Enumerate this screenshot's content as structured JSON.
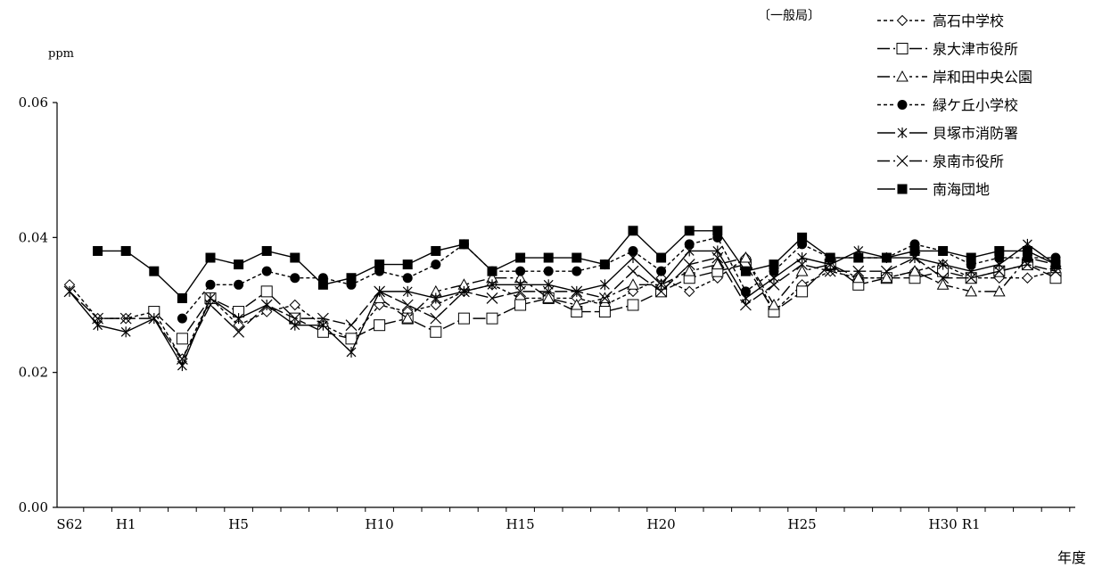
{
  "chart_data": {
    "type": "line",
    "title": "",
    "network_label": "〔一般局〕",
    "ylabel": "ppm",
    "xlabel": "年度",
    "ylim": [
      0,
      0.06
    ],
    "yticks": [
      "0.00",
      "0.02",
      "0.04",
      "0.06"
    ],
    "xlim": [
      0,
      35
    ],
    "xtick_labels": [
      {
        "i": 0,
        "label": "S62"
      },
      {
        "i": 2,
        "label": "H1"
      },
      {
        "i": 6,
        "label": "H5"
      },
      {
        "i": 11,
        "label": "H10"
      },
      {
        "i": 16,
        "label": "H15"
      },
      {
        "i": 21,
        "label": "H20"
      },
      {
        "i": 26,
        "label": "H25"
      },
      {
        "i": 31,
        "label": "H30"
      },
      {
        "i": 32,
        "label": "R1"
      }
    ],
    "x": [
      0,
      1,
      2,
      3,
      4,
      5,
      6,
      7,
      8,
      9,
      10,
      11,
      12,
      13,
      14,
      15,
      16,
      17,
      18,
      19,
      20,
      21,
      22,
      23,
      24,
      25,
      26,
      27,
      28,
      29,
      30,
      31,
      32,
      33,
      34,
      35
    ],
    "grid": false,
    "legend_position": "top-right",
    "series": [
      {
        "name": "高石中学校",
        "marker": "diamond-open",
        "dash": "4,3",
        "values": [
          0.033,
          0.028,
          0.028,
          0.029,
          0.022,
          0.031,
          0.027,
          0.029,
          0.03,
          0.027,
          0.025,
          0.03,
          0.029,
          0.03,
          0.032,
          0.033,
          0.031,
          0.031,
          0.031,
          0.03,
          0.032,
          0.034,
          0.032,
          0.034,
          0.037,
          0.029,
          0.033,
          0.035,
          0.034,
          0.034,
          0.035,
          0.036,
          0.034,
          0.034,
          0.034,
          0.035
        ]
      },
      {
        "name": "泉大津市役所",
        "marker": "square-open",
        "dash": "14,4",
        "values": [
          null,
          null,
          null,
          0.029,
          0.025,
          0.031,
          0.029,
          0.032,
          0.028,
          0.026,
          0.025,
          0.027,
          0.028,
          0.026,
          0.028,
          0.028,
          0.03,
          0.031,
          0.029,
          0.029,
          0.03,
          0.032,
          0.034,
          0.035,
          0.036,
          0.029,
          0.032,
          0.036,
          0.033,
          0.034,
          0.034,
          0.035,
          0.034,
          0.035,
          0.036,
          0.034
        ]
      },
      {
        "name": "岸和田中央公園",
        "marker": "triangle-open",
        "dash": "14,4,3,4",
        "values": [
          null,
          null,
          null,
          null,
          null,
          null,
          null,
          null,
          null,
          null,
          null,
          0.031,
          0.028,
          0.032,
          0.033,
          0.034,
          0.034,
          0.031,
          0.03,
          0.031,
          0.033,
          0.033,
          0.035,
          0.036,
          0.037,
          0.03,
          0.035,
          0.036,
          0.034,
          0.034,
          0.035,
          0.033,
          0.032,
          0.032,
          0.037,
          0.036
        ]
      },
      {
        "name": "緑ケ丘小学校",
        "marker": "circle-filled",
        "dash": "4,3",
        "values": [
          null,
          null,
          null,
          null,
          0.028,
          0.033,
          0.033,
          0.035,
          0.034,
          0.034,
          0.033,
          0.035,
          0.034,
          0.036,
          0.039,
          0.035,
          0.035,
          0.035,
          0.035,
          0.036,
          0.038,
          0.035,
          0.039,
          0.04,
          0.032,
          0.035,
          0.039,
          0.037,
          0.037,
          0.037,
          0.039,
          0.038,
          0.036,
          0.037,
          0.037,
          0.037
        ]
      },
      {
        "name": "貝塚市消防署",
        "marker": "asterisk",
        "dash": "",
        "values": [
          0.032,
          0.027,
          0.026,
          0.028,
          0.021,
          0.031,
          0.028,
          0.03,
          0.027,
          0.027,
          0.023,
          0.032,
          0.032,
          0.031,
          0.032,
          0.033,
          0.033,
          0.033,
          0.032,
          0.033,
          0.037,
          0.033,
          0.038,
          0.038,
          0.031,
          0.034,
          0.037,
          0.036,
          0.038,
          0.037,
          0.037,
          0.036,
          0.035,
          0.036,
          0.039,
          0.036
        ]
      },
      {
        "name": "泉南市役所",
        "marker": "x-mark",
        "dash": "14,4",
        "values": [
          0.032,
          0.028,
          0.028,
          0.028,
          0.022,
          0.03,
          0.026,
          0.03,
          0.028,
          0.028,
          0.027,
          0.032,
          0.03,
          0.028,
          0.032,
          0.031,
          0.032,
          0.032,
          0.032,
          0.031,
          0.035,
          0.032,
          0.036,
          0.037,
          0.03,
          0.033,
          0.036,
          0.035,
          0.035,
          0.035,
          0.037,
          0.034,
          0.034,
          0.035,
          0.036,
          0.035
        ]
      },
      {
        "name": "南海団地",
        "marker": "square-filled",
        "dash": "",
        "values": [
          null,
          0.038,
          0.038,
          0.035,
          0.031,
          0.037,
          0.036,
          0.038,
          0.037,
          0.033,
          0.034,
          0.036,
          0.036,
          0.038,
          0.039,
          0.035,
          0.037,
          0.037,
          0.037,
          0.036,
          0.041,
          0.037,
          0.041,
          0.041,
          0.035,
          0.036,
          0.04,
          0.037,
          0.037,
          0.037,
          0.038,
          0.038,
          0.037,
          0.038,
          0.038,
          0.036
        ]
      }
    ]
  }
}
